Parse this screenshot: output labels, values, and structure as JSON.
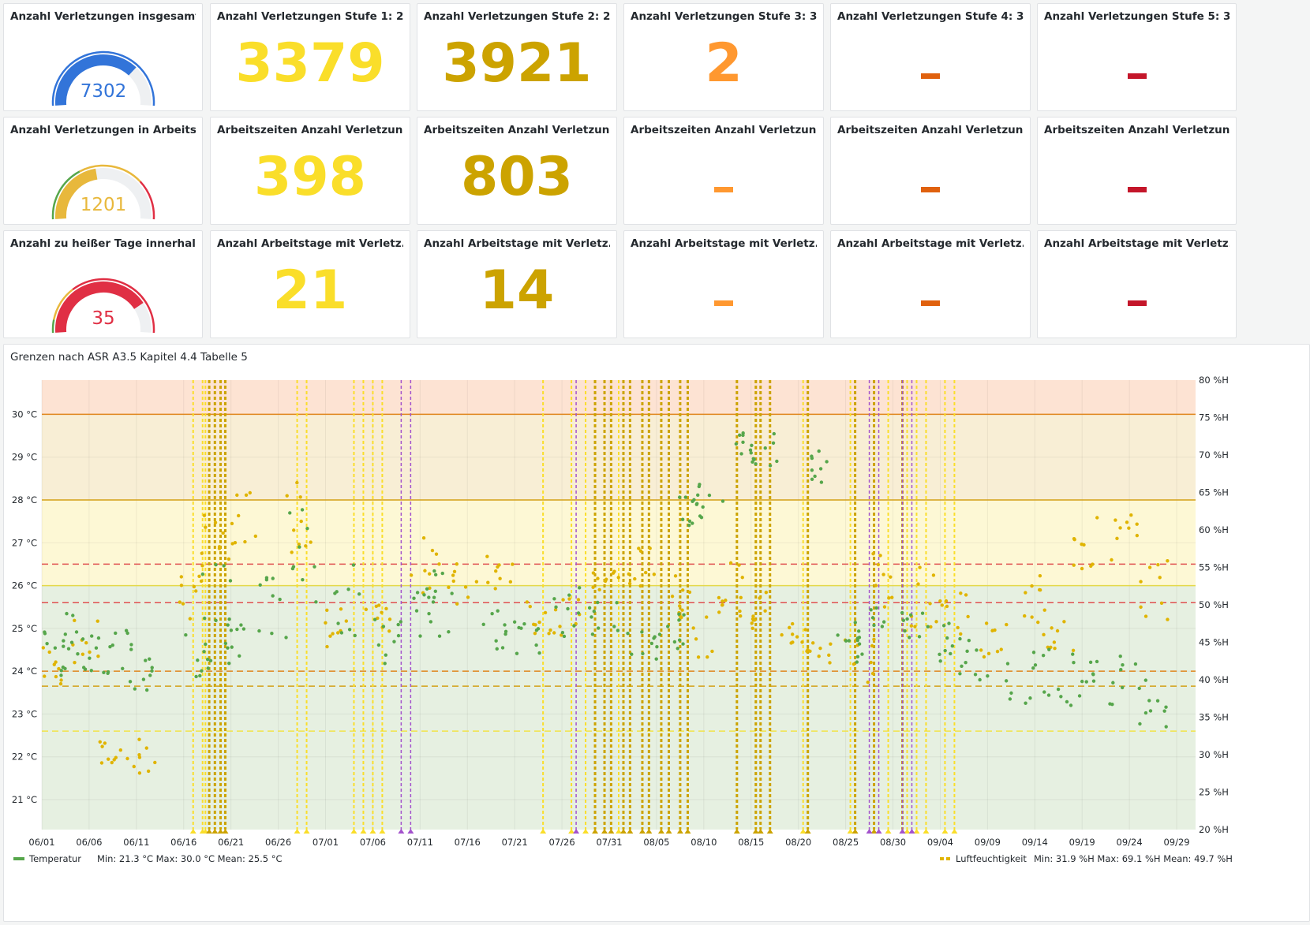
{
  "colors": {
    "blue": "#3274d9",
    "yellow": "#fade2a",
    "dark_yellow": "#cca300",
    "orange": "#ff9830",
    "dark_orange": "#e0610e",
    "dark_red": "#c4162a",
    "red": "#e02f44",
    "green": "#56a64b",
    "purple": "#a352cc"
  },
  "stats": {
    "row1": [
      {
        "title": "Anzahl Verletzungen insgesamt",
        "type": "gauge",
        "value": "7302",
        "fraction": 0.73,
        "color": "#3274d9"
      },
      {
        "title": "Anzahl Verletzungen Stufe 1: 2...",
        "type": "stat",
        "value": "3379",
        "color": "#fade2a"
      },
      {
        "title": "Anzahl Verletzungen Stufe 2: 2...",
        "type": "stat",
        "value": "3921",
        "color": "#cca300"
      },
      {
        "title": "Anzahl Verletzungen Stufe 3: 3...",
        "type": "stat",
        "value": "2",
        "color": "#ff9830"
      },
      {
        "title": "Anzahl Verletzungen Stufe 4: 3...",
        "type": "dash",
        "color": "#e0610e"
      },
      {
        "title": "Anzahl Verletzungen Stufe 5: 3...",
        "type": "dash",
        "color": "#c4162a"
      }
    ],
    "row2": [
      {
        "title": "Anzahl Verletzungen in Arbeits...",
        "type": "gauge",
        "value": "1201",
        "fraction": 0.45,
        "color": "#e8b83c"
      },
      {
        "title": "Arbeitszeiten Anzahl Verletzun...",
        "type": "stat",
        "value": "398",
        "color": "#fade2a"
      },
      {
        "title": "Arbeitszeiten Anzahl Verletzun...",
        "type": "stat",
        "value": "803",
        "color": "#cca300"
      },
      {
        "title": "Arbeitszeiten Anzahl Verletzun...",
        "type": "dash",
        "color": "#ff9830"
      },
      {
        "title": "Arbeitszeiten Anzahl Verletzun...",
        "type": "dash",
        "color": "#e0610e"
      },
      {
        "title": "Arbeitszeiten Anzahl Verletzun...",
        "type": "dash",
        "color": "#c4162a"
      }
    ],
    "row3": [
      {
        "title": "Anzahl zu heißer Tage innerhal...",
        "type": "gauge",
        "value": "35",
        "fraction": 0.8,
        "color": "#e02f44"
      },
      {
        "title": "Anzahl Arbeitstage mit Verletz...",
        "type": "stat",
        "value": "21",
        "color": "#fade2a"
      },
      {
        "title": "Anzahl Arbeitstage mit Verletz...",
        "type": "stat",
        "value": "14",
        "color": "#cca300"
      },
      {
        "title": "Anzahl Arbeitstage mit Verletz...",
        "type": "dash",
        "color": "#ff9830"
      },
      {
        "title": "Anzahl Arbeitstage mit Verletz...",
        "type": "dash",
        "color": "#e0610e"
      },
      {
        "title": "Anzahl Arbeitstage mit Verletz...",
        "type": "dash",
        "color": "#c4162a"
      }
    ]
  },
  "timeseries": {
    "title": "Grenzen nach ASR A3.5 Kapitel 4.4 Tabelle 5",
    "y_left_ticks": [
      "30 °C",
      "29 °C",
      "28 °C",
      "27 °C",
      "26 °C",
      "25 °C",
      "24 °C",
      "23 °C",
      "22 °C",
      "21 °C"
    ],
    "y_right_ticks": [
      "80 %H",
      "75 %H",
      "70 %H",
      "65 %H",
      "60 %H",
      "55 %H",
      "50 %H",
      "45 %H",
      "40 %H",
      "35 %H",
      "30 %H",
      "25 %H",
      "20 %H"
    ],
    "x_ticks": [
      "06/01",
      "06/06",
      "06/11",
      "06/16",
      "06/21",
      "06/26",
      "07/01",
      "07/06",
      "07/11",
      "07/16",
      "07/21",
      "07/26",
      "07/31",
      "08/05",
      "08/10",
      "08/15",
      "08/20",
      "08/25",
      "08/30",
      "09/04",
      "09/09",
      "09/14",
      "09/19",
      "09/24",
      "09/29"
    ],
    "legend": {
      "temperature": {
        "name": "Temperatur",
        "stats": "Min: 21.3 °C   Max: 30.0 °C   Mean: 25.5 °C"
      },
      "humidity": {
        "name": "Luftfeuchtigkeit",
        "stats": "Min: 31.9 %H   Max: 69.1 %H   Mean: 49.7 %H"
      }
    }
  },
  "chart_data": {
    "type": "scatter",
    "title": "Grenzen nach ASR A3.5 Kapitel 4.4 Tabelle 5",
    "x_range": [
      "06/01",
      "10/01"
    ],
    "y_left_range": [
      20.3,
      30.8
    ],
    "y_right_range": [
      20,
      80
    ],
    "thresholds_left": [
      {
        "value": 30,
        "color": "#e0861e",
        "style": "solid"
      },
      {
        "value": 28,
        "color": "#d4a017",
        "style": "solid"
      },
      {
        "value": 26,
        "color": "#e5d94a",
        "style": "solid"
      },
      {
        "value": 26.5,
        "color": "#e05050",
        "style": "dashed"
      },
      {
        "value": 25.6,
        "color": "#e05050",
        "style": "dashed"
      },
      {
        "value": 24,
        "color": "#e0861e",
        "style": "dashed"
      },
      {
        "value": 23.65,
        "color": "#d4a017",
        "style": "dashed"
      },
      {
        "value": 22.6,
        "color": "#f2e34a",
        "style": "dashed"
      }
    ],
    "bands_left": [
      {
        "from": 30,
        "to": 30.8,
        "color": "#fde3d3"
      },
      {
        "from": 28,
        "to": 30,
        "color": "#f8eed5"
      },
      {
        "from": 26,
        "to": 28,
        "color": "#fdf8d5"
      },
      {
        "from": 20.3,
        "to": 26,
        "color": "#e6f0e1"
      }
    ],
    "series": [
      {
        "name": "Temperatur",
        "color": "#56a64b",
        "unit": "°C"
      },
      {
        "name": "Luftfeuchtigkeit",
        "color": "#e0b400",
        "unit": "%H"
      }
    ],
    "temperature_clusters": [
      [
        1.5,
        24.5,
        0.6
      ],
      [
        3.5,
        24.9,
        0.5
      ],
      [
        5.5,
        24.4,
        0.5
      ],
      [
        8.5,
        24.2,
        0.8
      ],
      [
        10.5,
        24.0,
        0.6
      ],
      [
        16.5,
        24.4,
        0.8
      ],
      [
        18.5,
        25.6,
        1.0
      ],
      [
        20.5,
        25.0,
        0.9
      ],
      [
        24.5,
        25.4,
        0.8
      ],
      [
        27.5,
        26.8,
        1.2
      ],
      [
        32.5,
        25.6,
        1.0
      ],
      [
        36.5,
        24.7,
        0.6
      ],
      [
        40.5,
        25.4,
        0.6
      ],
      [
        42.5,
        25.6,
        0.8
      ],
      [
        47.5,
        25.0,
        0.5
      ],
      [
        51.5,
        24.8,
        0.4
      ],
      [
        55.5,
        25.4,
        0.6
      ],
      [
        59.5,
        25.3,
        0.5
      ],
      [
        63.5,
        24.6,
        0.4
      ],
      [
        66.5,
        25.0,
        0.6
      ],
      [
        68.5,
        27.8,
        0.4
      ],
      [
        70.5,
        28.1,
        0.3
      ],
      [
        73.5,
        29.3,
        0.4
      ],
      [
        76.5,
        29.2,
        0.4
      ],
      [
        81.5,
        28.8,
        0.4
      ],
      [
        85.5,
        24.6,
        0.4
      ],
      [
        87.5,
        25.0,
        0.5
      ],
      [
        92.5,
        25.1,
        0.4
      ],
      [
        96.5,
        24.7,
        0.5
      ],
      [
        98.5,
        24.3,
        0.6
      ],
      [
        103.5,
        23.8,
        0.7
      ],
      [
        107.5,
        23.9,
        0.7
      ],
      [
        110.5,
        24.0,
        0.6
      ],
      [
        114.5,
        23.8,
        0.6
      ],
      [
        117.5,
        23.3,
        0.6
      ]
    ],
    "humidity_clusters": [
      [
        1.5,
        42,
        3
      ],
      [
        4.5,
        45,
        3
      ],
      [
        7.5,
        30,
        2
      ],
      [
        10.5,
        30,
        3
      ],
      [
        15.5,
        51,
        3
      ],
      [
        18.5,
        58,
        4
      ],
      [
        21.5,
        62,
        4
      ],
      [
        27.5,
        62,
        5
      ],
      [
        31.5,
        47,
        3
      ],
      [
        35.5,
        47,
        3
      ],
      [
        40.5,
        55,
        4
      ],
      [
        44.5,
        53,
        3
      ],
      [
        48.5,
        55,
        3
      ],
      [
        52.5,
        49,
        3
      ],
      [
        55.5,
        48,
        3
      ],
      [
        59.5,
        53,
        3
      ],
      [
        63.5,
        55,
        3
      ],
      [
        67.5,
        51,
        3
      ],
      [
        70.5,
        47,
        4
      ],
      [
        73.5,
        52,
        4
      ],
      [
        76.5,
        49,
        3
      ],
      [
        79.5,
        46,
        2
      ],
      [
        82.5,
        44,
        2
      ],
      [
        86.5,
        43,
        4
      ],
      [
        89.5,
        53,
        4
      ],
      [
        93.5,
        51,
        4
      ],
      [
        96.5,
        50,
        4
      ],
      [
        100.5,
        45,
        3
      ],
      [
        104.5,
        50,
        4
      ],
      [
        107.5,
        47,
        4
      ],
      [
        110.5,
        58,
        4
      ],
      [
        114.5,
        59,
        4
      ],
      [
        117.5,
        52,
        4
      ]
    ],
    "annotations": {
      "yellow_days": [
        16,
        17,
        17.3,
        27,
        28,
        33,
        34,
        35,
        36,
        53,
        56,
        57.5,
        61,
        80.5,
        85.5,
        89.5,
        91.5,
        92.5,
        93.5,
        95.5,
        96.5
      ],
      "dark_yellow_days": [
        17.7,
        18.3,
        18.9,
        19.4,
        58.5,
        59.5,
        60.2,
        61.5,
        62.2,
        63.5,
        64.2,
        65.5,
        66.3,
        67.5,
        68.3,
        73.5,
        75.5,
        76,
        77,
        81,
        86,
        88,
        91
      ],
      "purple_days": [
        38,
        39,
        56.5,
        87.5,
        88.5,
        91,
        92
      ]
    }
  }
}
